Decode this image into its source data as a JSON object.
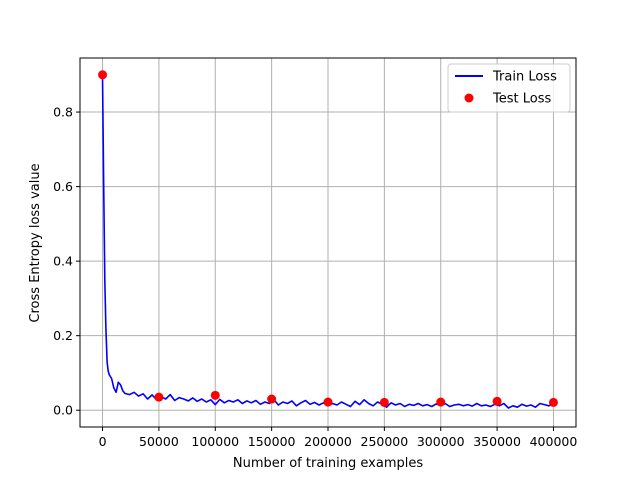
{
  "chart_data": {
    "type": "line",
    "title": "",
    "xlabel": "Number of training examples",
    "ylabel": "Cross Entropy loss value",
    "xlim": [
      -20000,
      420000
    ],
    "ylim": [
      -0.045,
      0.945
    ],
    "xticks": [
      0,
      50000,
      100000,
      150000,
      200000,
      250000,
      300000,
      350000,
      400000
    ],
    "xtick_labels": [
      "0",
      "50000",
      "100000",
      "150000",
      "200000",
      "250000",
      "300000",
      "350000",
      "400000"
    ],
    "yticks": [
      0.0,
      0.2,
      0.4,
      0.6,
      0.8
    ],
    "ytick_labels": [
      "0.0",
      "0.2",
      "0.4",
      "0.6",
      "0.8"
    ],
    "grid": true,
    "legend_position": "top-right",
    "series": [
      {
        "name": "Train Loss",
        "kind": "line",
        "color": "#0000ff",
        "x": [
          0,
          1000,
          2000,
          3000,
          4000,
          5000,
          6000,
          8000,
          10000,
          12000,
          14000,
          16000,
          18000,
          20000,
          24000,
          28000,
          32000,
          36000,
          40000,
          44000,
          48000,
          52000,
          56000,
          60000,
          64000,
          68000,
          72000,
          76000,
          80000,
          84000,
          88000,
          92000,
          96000,
          100000,
          104000,
          108000,
          112000,
          116000,
          120000,
          124000,
          128000,
          132000,
          136000,
          140000,
          144000,
          148000,
          152000,
          156000,
          160000,
          164000,
          168000,
          172000,
          176000,
          180000,
          184000,
          188000,
          192000,
          196000,
          200000,
          204000,
          208000,
          212000,
          216000,
          220000,
          224000,
          228000,
          232000,
          236000,
          240000,
          244000,
          248000,
          252000,
          256000,
          260000,
          264000,
          268000,
          272000,
          276000,
          280000,
          284000,
          288000,
          292000,
          296000,
          300000,
          304000,
          308000,
          312000,
          316000,
          320000,
          324000,
          328000,
          332000,
          336000,
          340000,
          344000,
          348000,
          352000,
          356000,
          360000,
          364000,
          368000,
          372000,
          376000,
          380000,
          384000,
          388000,
          392000,
          396000,
          400000
        ],
        "y": [
          0.9,
          0.6,
          0.35,
          0.22,
          0.13,
          0.105,
          0.095,
          0.085,
          0.06,
          0.048,
          0.075,
          0.068,
          0.052,
          0.045,
          0.042,
          0.048,
          0.038,
          0.044,
          0.03,
          0.041,
          0.028,
          0.036,
          0.03,
          0.042,
          0.026,
          0.034,
          0.03,
          0.025,
          0.033,
          0.024,
          0.03,
          0.022,
          0.028,
          0.015,
          0.029,
          0.02,
          0.026,
          0.022,
          0.028,
          0.018,
          0.025,
          0.02,
          0.026,
          0.016,
          0.022,
          0.018,
          0.028,
          0.014,
          0.022,
          0.018,
          0.025,
          0.012,
          0.02,
          0.026,
          0.016,
          0.021,
          0.014,
          0.02,
          0.012,
          0.018,
          0.014,
          0.022,
          0.016,
          0.01,
          0.024,
          0.015,
          0.028,
          0.018,
          0.012,
          0.022,
          0.016,
          0.008,
          0.02,
          0.014,
          0.018,
          0.01,
          0.016,
          0.013,
          0.018,
          0.012,
          0.015,
          0.01,
          0.017,
          0.012,
          0.018,
          0.01,
          0.014,
          0.016,
          0.012,
          0.015,
          0.011,
          0.018,
          0.012,
          0.014,
          0.01,
          0.016,
          0.012,
          0.018,
          0.006,
          0.012,
          0.008,
          0.016,
          0.011,
          0.014,
          0.008,
          0.018,
          0.015,
          0.012,
          0.018
        ]
      },
      {
        "name": "Test Loss",
        "kind": "scatter",
        "color": "#ff0000",
        "x": [
          0,
          50000,
          100000,
          150000,
          200000,
          250000,
          300000,
          350000,
          400000
        ],
        "y": [
          0.9,
          0.035,
          0.04,
          0.03,
          0.022,
          0.021,
          0.022,
          0.024,
          0.021
        ]
      }
    ]
  }
}
